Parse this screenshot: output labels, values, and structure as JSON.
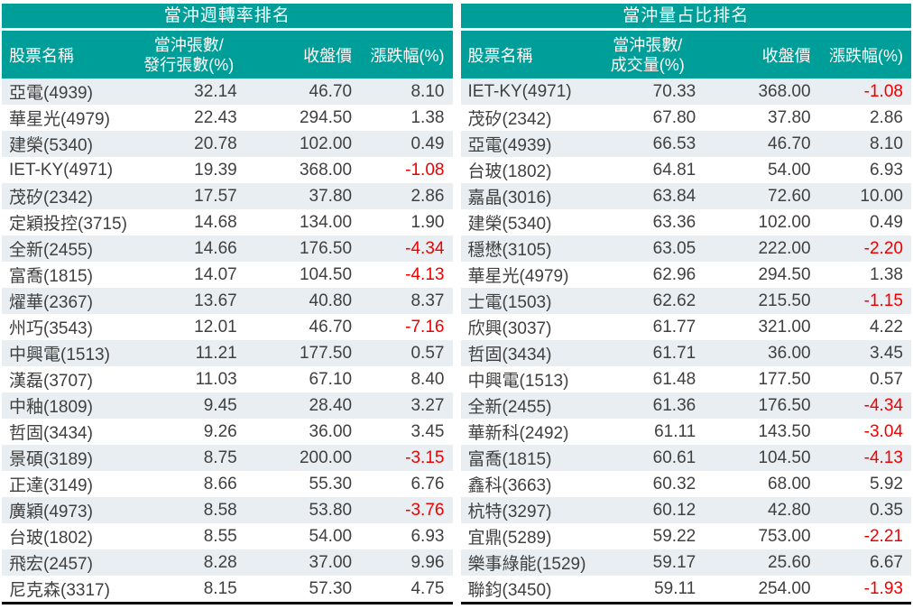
{
  "colors": {
    "teal": "#009E98",
    "header_text": "#FFFFFF",
    "row_alt_bg": "#E8EEF1",
    "row_bg": "#FFFFFF",
    "text": "#404040",
    "negative": "#F20000",
    "bottom_border": "#000000"
  },
  "tables": [
    {
      "title": "當沖週轉率排名",
      "headers": {
        "name": "股票名稱",
        "metric_line1": "當沖張數/",
        "metric_line2": "發行張數(%)",
        "close": "收盤價",
        "change": "漲跌幅(%)"
      },
      "rows": [
        [
          "亞電(4939)",
          "32.14",
          "46.70",
          "8.10"
        ],
        [
          "華星光(4979)",
          "22.43",
          "294.50",
          "1.38"
        ],
        [
          "建榮(5340)",
          "20.78",
          "102.00",
          "0.49"
        ],
        [
          "IET-KY(4971)",
          "19.39",
          "368.00",
          "-1.08"
        ],
        [
          "茂矽(2342)",
          "17.57",
          "37.80",
          "2.86"
        ],
        [
          "定穎投控(3715)",
          "14.68",
          "134.00",
          "1.90"
        ],
        [
          "全新(2455)",
          "14.66",
          "176.50",
          "-4.34"
        ],
        [
          "富喬(1815)",
          "14.07",
          "104.50",
          "-4.13"
        ],
        [
          "燿華(2367)",
          "13.67",
          "40.80",
          "8.37"
        ],
        [
          "州巧(3543)",
          "12.01",
          "46.70",
          "-7.16"
        ],
        [
          "中興電(1513)",
          "11.21",
          "177.50",
          "0.57"
        ],
        [
          "漢磊(3707)",
          "11.03",
          "67.10",
          "8.40"
        ],
        [
          "中釉(1809)",
          "9.45",
          "28.40",
          "3.27"
        ],
        [
          "哲固(3434)",
          "9.26",
          "36.00",
          "3.45"
        ],
        [
          "景碩(3189)",
          "8.75",
          "200.00",
          "-3.15"
        ],
        [
          "正達(3149)",
          "8.66",
          "55.30",
          "6.76"
        ],
        [
          "廣穎(4973)",
          "8.58",
          "53.80",
          "-3.76"
        ],
        [
          "台玻(1802)",
          "8.55",
          "54.00",
          "6.93"
        ],
        [
          "飛宏(2457)",
          "8.28",
          "37.00",
          "9.96"
        ],
        [
          "尼克森(3317)",
          "8.15",
          "57.30",
          "4.75"
        ]
      ]
    },
    {
      "title": "當沖量占比排名",
      "headers": {
        "name": "股票名稱",
        "metric_line1": "當沖張數/",
        "metric_line2": "成交量(%)",
        "close": "收盤價",
        "change": "漲跌幅(%)"
      },
      "rows": [
        [
          "IET-KY(4971)",
          "70.33",
          "368.00",
          "-1.08"
        ],
        [
          "茂矽(2342)",
          "67.80",
          "37.80",
          "2.86"
        ],
        [
          "亞電(4939)",
          "66.53",
          "46.70",
          "8.10"
        ],
        [
          "台玻(1802)",
          "64.81",
          "54.00",
          "6.93"
        ],
        [
          "嘉晶(3016)",
          "63.84",
          "72.60",
          "10.00"
        ],
        [
          "建榮(5340)",
          "63.36",
          "102.00",
          "0.49"
        ],
        [
          "穩懋(3105)",
          "63.05",
          "222.00",
          "-2.20"
        ],
        [
          "華星光(4979)",
          "62.96",
          "294.50",
          "1.38"
        ],
        [
          "士電(1503)",
          "62.62",
          "215.50",
          "-1.15"
        ],
        [
          "欣興(3037)",
          "61.77",
          "321.00",
          "4.22"
        ],
        [
          "哲固(3434)",
          "61.71",
          "36.00",
          "3.45"
        ],
        [
          "中興電(1513)",
          "61.48",
          "177.50",
          "0.57"
        ],
        [
          "全新(2455)",
          "61.36",
          "176.50",
          "-4.34"
        ],
        [
          "華新科(2492)",
          "61.11",
          "143.50",
          "-3.04"
        ],
        [
          "富喬(1815)",
          "60.61",
          "104.50",
          "-4.13"
        ],
        [
          "鑫科(3663)",
          "60.32",
          "68.00",
          "5.92"
        ],
        [
          "杭特(3297)",
          "60.12",
          "42.80",
          "0.35"
        ],
        [
          "宜鼎(5289)",
          "59.22",
          "753.00",
          "-2.21"
        ],
        [
          "樂事綠能(1529)",
          "59.17",
          "25.60",
          "6.67"
        ],
        [
          "聯鈞(3450)",
          "59.11",
          "254.00",
          "-1.93"
        ]
      ]
    }
  ]
}
